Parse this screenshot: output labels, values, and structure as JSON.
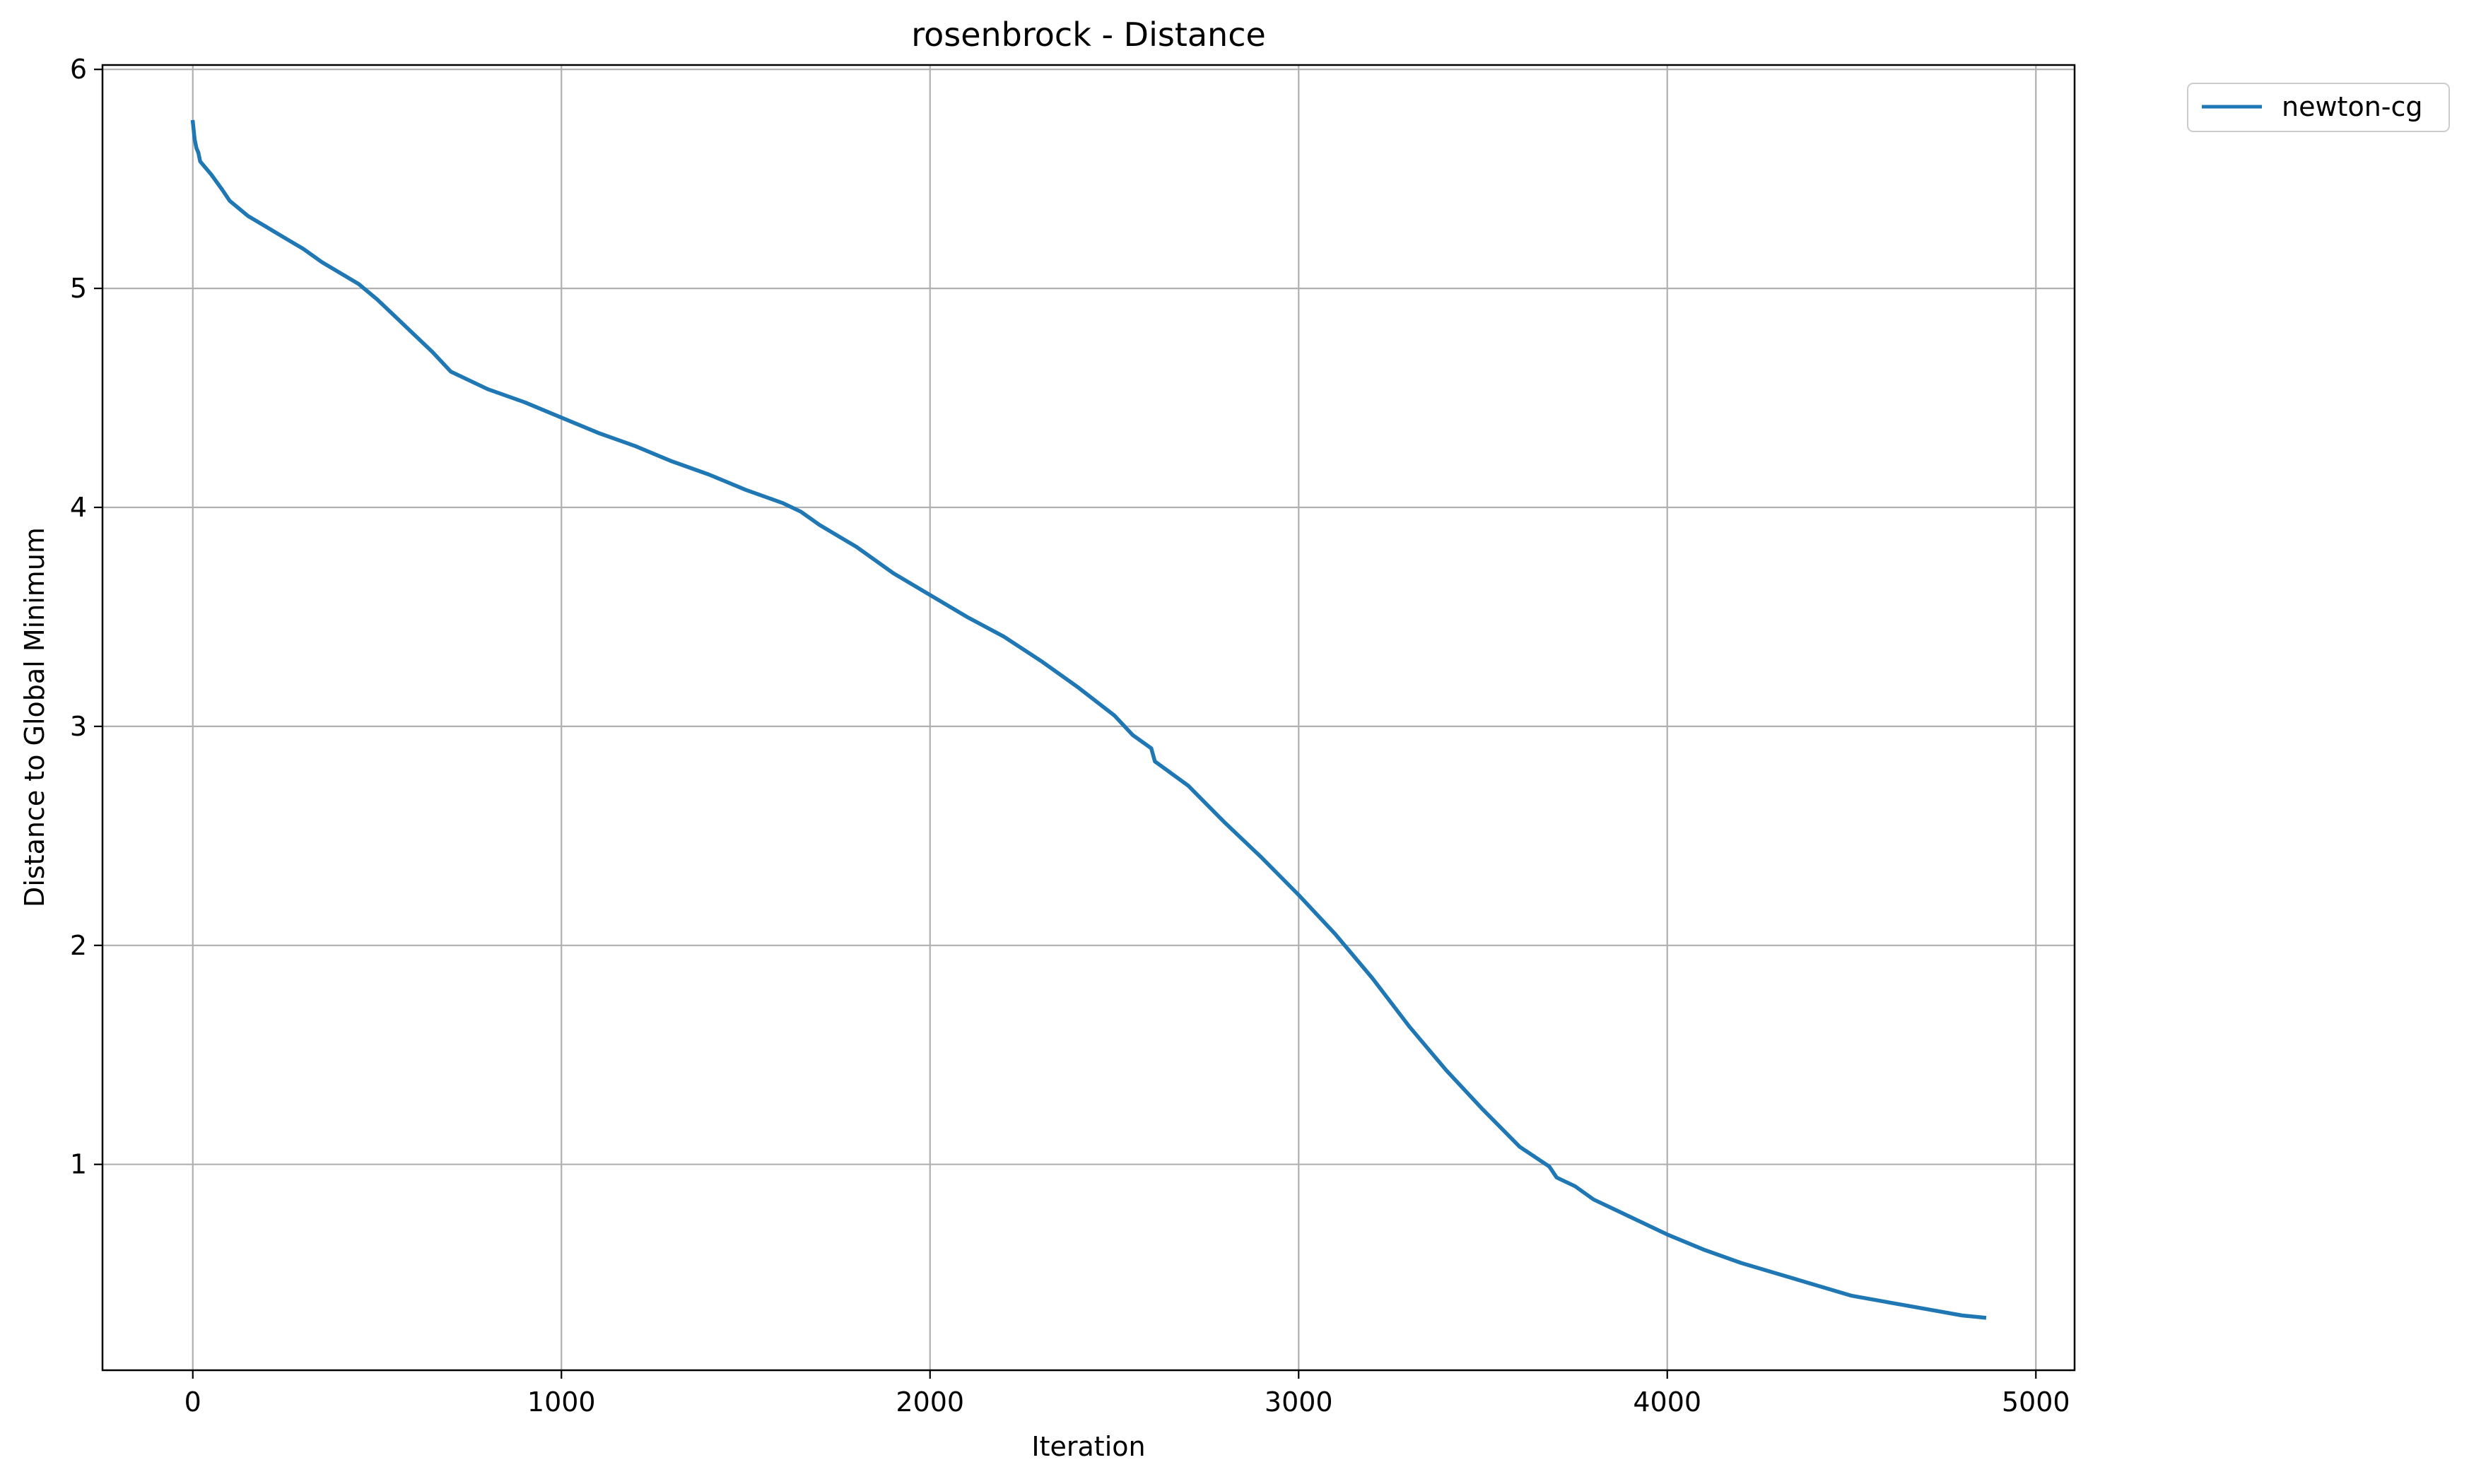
{
  "chart_data": {
    "type": "line",
    "title": "rosenbrock - Distance",
    "xlabel": "Iteration",
    "ylabel": "Distance to Global Minimum",
    "xlim": [
      -245,
      5105
    ],
    "ylim": [
      0.06,
      6.02
    ],
    "xticks": [
      0,
      1000,
      2000,
      3000,
      4000,
      5000
    ],
    "xtick_labels": [
      "0",
      "1000",
      "2000",
      "3000",
      "4000",
      "5000"
    ],
    "yticks": [
      1,
      2,
      3,
      4,
      5,
      6
    ],
    "ytick_labels": [
      "1",
      "2",
      "3",
      "4",
      "5",
      "6"
    ],
    "grid": true,
    "legend_position": "outside top-right",
    "series": [
      {
        "name": "newton-cg",
        "color": "#1f77b4",
        "x": [
          0,
          5,
          10,
          15,
          20,
          30,
          50,
          80,
          100,
          150,
          200,
          250,
          300,
          350,
          400,
          450,
          500,
          550,
          600,
          650,
          700,
          800,
          900,
          1000,
          1100,
          1200,
          1300,
          1400,
          1500,
          1600,
          1650,
          1700,
          1800,
          1900,
          2000,
          2100,
          2200,
          2300,
          2400,
          2500,
          2550,
          2600,
          2610,
          2700,
          2800,
          2900,
          3000,
          3100,
          3200,
          3300,
          3400,
          3500,
          3600,
          3680,
          3700,
          3750,
          3800,
          3900,
          4000,
          4100,
          4200,
          4300,
          4400,
          4500,
          4600,
          4700,
          4800,
          4860
        ],
        "values": [
          5.76,
          5.68,
          5.64,
          5.62,
          5.58,
          5.56,
          5.52,
          5.45,
          5.4,
          5.33,
          5.28,
          5.23,
          5.18,
          5.12,
          5.07,
          5.02,
          4.95,
          4.87,
          4.79,
          4.71,
          4.62,
          4.54,
          4.48,
          4.41,
          4.34,
          4.28,
          4.21,
          4.15,
          4.08,
          4.02,
          3.98,
          3.92,
          3.82,
          3.7,
          3.6,
          3.5,
          3.41,
          3.3,
          3.18,
          3.05,
          2.96,
          2.9,
          2.84,
          2.73,
          2.56,
          2.4,
          2.23,
          2.05,
          1.85,
          1.63,
          1.43,
          1.25,
          1.08,
          0.99,
          0.94,
          0.9,
          0.84,
          0.76,
          0.68,
          0.61,
          0.55,
          0.5,
          0.45,
          0.4,
          0.37,
          0.34,
          0.31,
          0.3
        ]
      }
    ]
  }
}
